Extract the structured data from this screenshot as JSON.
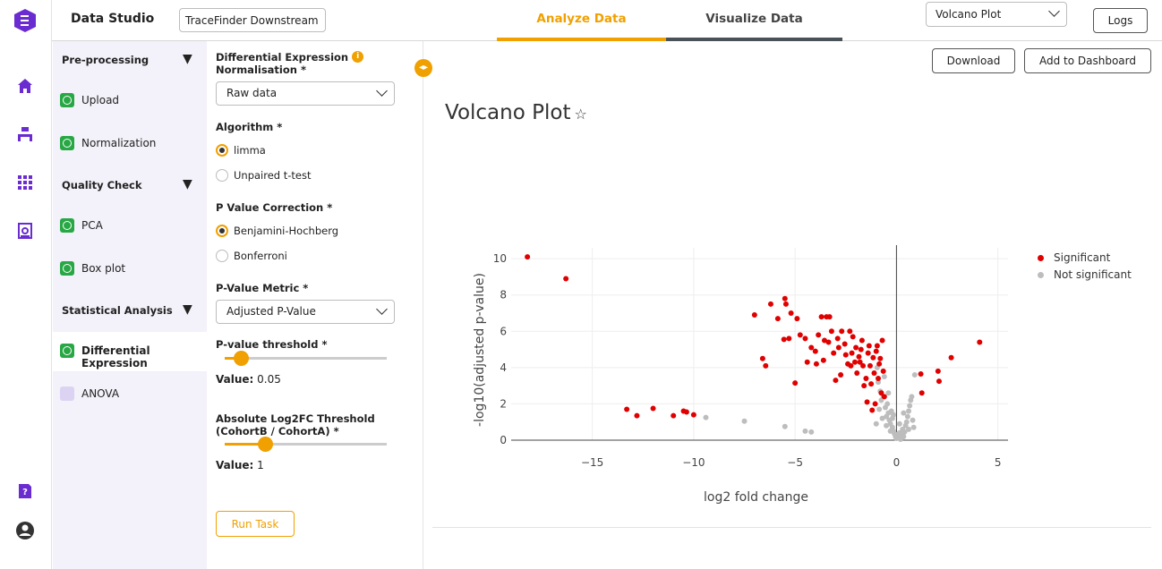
{
  "header": {
    "app_title": "Data Studio",
    "project": "TraceFinder Downstream",
    "tabs": [
      {
        "label": "Analyze Data",
        "active": true
      },
      {
        "label": "Visualize Data",
        "active": false
      }
    ],
    "view_select": "Volcano Plot",
    "logs_label": "Logs"
  },
  "rail": {
    "icons": [
      "logo-icon",
      "home-icon",
      "workflow-icon",
      "apps-grid-icon",
      "report-icon",
      "help-icon",
      "user-avatar-icon"
    ]
  },
  "sidebar": {
    "sections": [
      {
        "title": "Pre-processing",
        "arrow": "▼",
        "items": [
          {
            "label": "Upload",
            "status": "done"
          },
          {
            "label": "Normalization",
            "status": "done"
          }
        ]
      },
      {
        "title": "Quality Check",
        "arrow": "▼",
        "items": [
          {
            "label": "PCA",
            "status": "done"
          },
          {
            "label": "Box plot",
            "status": "done"
          }
        ]
      },
      {
        "title": "Statistical Analysis",
        "arrow": "▼",
        "items": [
          {
            "label": "Differential Expression",
            "status": "done",
            "active": true
          },
          {
            "label": "ANOVA",
            "status": "pending"
          }
        ]
      }
    ]
  },
  "form": {
    "normalisation_label_1": "Differential Expression",
    "normalisation_label_2": "Normalisation *",
    "normalisation_value": "Raw data",
    "algorithm_label": "Algorithm *",
    "algorithm_options": [
      "limma",
      "Unpaired t-test"
    ],
    "pcorr_label": "P Value Correction *",
    "pcorr_options": [
      "Benjamini-Hochberg",
      "Bonferroni"
    ],
    "metric_label": "P-Value Metric *",
    "metric_value": "Adjusted P-Value",
    "pthresh_label": "P-value threshold *",
    "pthresh_fraction": 0.1,
    "pthresh_value_prefix": "Value:",
    "pthresh_value": "0.05",
    "fc_label_1": "Absolute Log2FC Threshold",
    "fc_label_2": "(CohortB / CohortA) *",
    "fc_fraction": 0.25,
    "fc_value_prefix": "Value:",
    "fc_value": "1",
    "run_label": "Run Task"
  },
  "main": {
    "download_label": "Download",
    "dashboard_label": "Add to Dashboard",
    "plot_title": "Volcano Plot"
  },
  "colors": {
    "accent": "#f0a000",
    "brand_purple": "#6a2bd0",
    "significant": "#e00000",
    "not_significant": "#bdbdbd"
  },
  "chart_data": {
    "type": "scatter",
    "xlabel": "log2 fold change",
    "ylabel": "-log10(adjusted p-value)",
    "xlim": [
      -19,
      5.5
    ],
    "ylim": [
      0,
      10.6
    ],
    "xticks": [
      -15,
      -10,
      -5,
      0,
      5
    ],
    "xtick_labels": [
      "−15",
      "−10",
      "−5",
      "0",
      "5"
    ],
    "yticks": [
      0,
      2,
      4,
      6,
      8,
      10
    ],
    "legend": "top-right",
    "grid": true,
    "series": [
      {
        "name": "Significant",
        "color": "#e00000",
        "points": [
          [
            -18.2,
            10.1
          ],
          [
            -16.3,
            8.9
          ],
          [
            -13.3,
            1.7
          ],
          [
            -12.8,
            1.35
          ],
          [
            -12.0,
            1.75
          ],
          [
            -11.0,
            1.35
          ],
          [
            -10.5,
            1.6
          ],
          [
            -10.35,
            1.55
          ],
          [
            -10.0,
            1.4
          ],
          [
            -7.0,
            6.9
          ],
          [
            -6.6,
            4.5
          ],
          [
            -6.45,
            4.1
          ],
          [
            -6.2,
            7.5
          ],
          [
            -5.85,
            6.7
          ],
          [
            -5.55,
            5.55
          ],
          [
            -5.5,
            7.8
          ],
          [
            -5.45,
            7.5
          ],
          [
            -5.3,
            5.6
          ],
          [
            -5.2,
            7.0
          ],
          [
            -5.0,
            3.15
          ],
          [
            -4.9,
            6.7
          ],
          [
            -4.75,
            5.8
          ],
          [
            -4.5,
            5.6
          ],
          [
            -4.4,
            4.3
          ],
          [
            -4.2,
            5.1
          ],
          [
            -4.0,
            4.9
          ],
          [
            -3.85,
            5.8
          ],
          [
            -3.7,
            6.8
          ],
          [
            -3.55,
            5.5
          ],
          [
            -3.45,
            6.8
          ],
          [
            -3.3,
            6.8
          ],
          [
            -3.35,
            5.4
          ],
          [
            -3.2,
            6.0
          ],
          [
            -3.1,
            4.8
          ],
          [
            -3.0,
            3.3
          ],
          [
            -2.85,
            5.1
          ],
          [
            -2.75,
            3.6
          ],
          [
            -2.7,
            6.0
          ],
          [
            -2.55,
            5.3
          ],
          [
            -2.4,
            4.2
          ],
          [
            -2.3,
            6.0
          ],
          [
            -2.2,
            4.8
          ],
          [
            -2.15,
            5.7
          ],
          [
            -2.05,
            4.3
          ],
          [
            -1.95,
            3.7
          ],
          [
            -1.85,
            4.6
          ],
          [
            -1.7,
            5.5
          ],
          [
            -1.65,
            4.1
          ],
          [
            -1.5,
            3.4
          ],
          [
            -1.45,
            2.1
          ],
          [
            -1.35,
            5.2
          ],
          [
            -1.3,
            4.1
          ],
          [
            -1.25,
            3.1
          ],
          [
            -1.2,
            1.65
          ],
          [
            -1.15,
            4.55
          ],
          [
            -1.05,
            2.0
          ],
          [
            -1.0,
            4.9
          ],
          [
            -0.9,
            3.4
          ],
          [
            -0.85,
            4.2
          ],
          [
            -0.75,
            2.6
          ],
          [
            -0.7,
            5.5
          ],
          [
            -0.65,
            3.8
          ],
          [
            -0.6,
            2.4
          ],
          [
            -1.8,
            4.3
          ],
          [
            -2.5,
            4.7
          ],
          [
            -2.9,
            5.6
          ],
          [
            -3.95,
            4.2
          ],
          [
            -1.6,
            3.0
          ],
          [
            -2.0,
            5.1
          ],
          [
            -1.4,
            4.8
          ],
          [
            -1.1,
            3.7
          ],
          [
            -0.95,
            5.2
          ],
          [
            -0.8,
            4.5
          ],
          [
            -1.75,
            5.0
          ],
          [
            -2.25,
            4.1
          ],
          [
            -3.6,
            4.4
          ],
          [
            1.2,
            3.65
          ],
          [
            1.25,
            2.6
          ],
          [
            2.05,
            3.8
          ],
          [
            2.1,
            3.25
          ],
          [
            2.7,
            4.55
          ],
          [
            4.1,
            5.4
          ]
        ]
      },
      {
        "name": "Not significant",
        "color": "#bdbdbd",
        "points": [
          [
            -9.4,
            1.25
          ],
          [
            -7.5,
            1.05
          ],
          [
            -5.5,
            0.75
          ],
          [
            -4.5,
            0.5
          ],
          [
            -4.2,
            0.45
          ],
          [
            -0.95,
            4.0
          ],
          [
            -0.9,
            3.2
          ],
          [
            -0.8,
            2.7
          ],
          [
            -0.75,
            2.2
          ],
          [
            -0.6,
            3.5
          ],
          [
            -0.55,
            1.8
          ],
          [
            -0.5,
            1.3
          ],
          [
            -0.45,
            2.0
          ],
          [
            -0.4,
            1.5
          ],
          [
            -0.35,
            1.1
          ],
          [
            -0.3,
            0.9
          ],
          [
            -0.25,
            1.6
          ],
          [
            -0.2,
            0.7
          ],
          [
            -0.15,
            0.5
          ],
          [
            -0.1,
            0.35
          ],
          [
            -0.05,
            0.2
          ],
          [
            0.0,
            0.1
          ],
          [
            0.05,
            0.3
          ],
          [
            0.1,
            0.15
          ],
          [
            0.15,
            0.4
          ],
          [
            0.2,
            0.05
          ],
          [
            0.25,
            0.25
          ],
          [
            0.3,
            0.6
          ],
          [
            0.35,
            0.2
          ],
          [
            0.4,
            0.45
          ],
          [
            0.45,
            0.8
          ],
          [
            0.5,
            1.0
          ],
          [
            0.55,
            1.3
          ],
          [
            0.6,
            1.6
          ],
          [
            0.65,
            1.9
          ],
          [
            0.7,
            2.2
          ],
          [
            0.75,
            2.4
          ],
          [
            0.8,
            1.1
          ],
          [
            0.85,
            0.7
          ],
          [
            -0.65,
            2.4
          ],
          [
            -0.85,
            1.7
          ],
          [
            -0.7,
            1.2
          ],
          [
            -0.5,
            0.8
          ],
          [
            -0.3,
            0.5
          ],
          [
            -0.2,
            1.2
          ],
          [
            0.9,
            3.6
          ],
          [
            -1.0,
            0.9
          ],
          [
            -0.4,
            2.6
          ],
          [
            0.6,
            0.6
          ],
          [
            0.15,
            0.9
          ],
          [
            -0.15,
            1.4
          ],
          [
            0.35,
            1.5
          ]
        ]
      }
    ]
  }
}
